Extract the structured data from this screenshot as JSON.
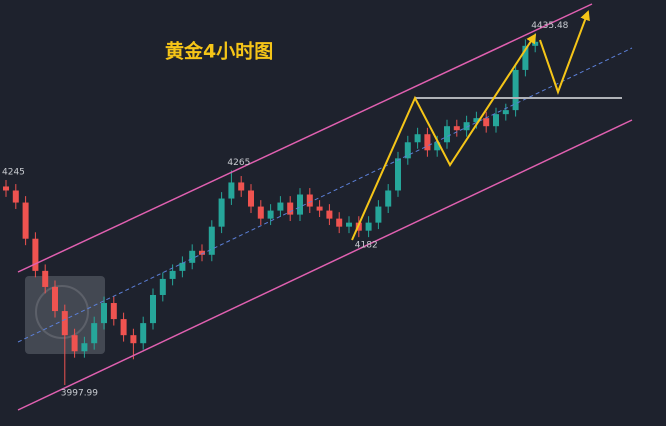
{
  "chart_data": {
    "type": "candlestick",
    "title": "黄金4小时图",
    "ylim": [
      3947,
      4477
    ],
    "up_color": "#26a69a",
    "down_color": "#ef5350",
    "open": [
      4245,
      4240,
      4225,
      4180,
      4140,
      4120,
      4090,
      4060,
      4040,
      4050,
      4075,
      4100,
      4080,
      4060,
      4050,
      4075,
      4110,
      4130,
      4140,
      4150,
      4165,
      4160,
      4195,
      4230,
      4250,
      4240,
      4220,
      4205,
      4215,
      4225,
      4210,
      4235,
      4220,
      4215,
      4205,
      4195,
      4200,
      4190,
      4200,
      4220,
      4240,
      4280,
      4300,
      4310,
      4290,
      4300,
      4320,
      4315,
      4325,
      4330,
      4320,
      4335,
      4340,
      4390,
      4420
    ],
    "high": [
      4253,
      4248,
      4233,
      4188,
      4148,
      4128,
      4098,
      4068,
      4058,
      4083,
      4108,
      4108,
      4088,
      4068,
      4083,
      4118,
      4138,
      4148,
      4158,
      4173,
      4173,
      4203,
      4238,
      4265,
      4258,
      4248,
      4228,
      4223,
      4233,
      4233,
      4243,
      4243,
      4228,
      4223,
      4213,
      4208,
      4208,
      4208,
      4228,
      4248,
      4288,
      4308,
      4318,
      4318,
      4308,
      4328,
      4328,
      4333,
      4338,
      4338,
      4343,
      4348,
      4398,
      4428,
      4435.48
    ],
    "low": [
      4232,
      4217,
      4172,
      4132,
      4112,
      4082,
      3997.99,
      4032,
      4032,
      4042,
      4067,
      4072,
      4052,
      4030,
      4042,
      4067,
      4102,
      4122,
      4132,
      4142,
      4152,
      4152,
      4187,
      4222,
      4232,
      4212,
      4197,
      4197,
      4207,
      4202,
      4202,
      4212,
      4207,
      4197,
      4187,
      4187,
      4182,
      4182,
      4192,
      4212,
      4232,
      4272,
      4292,
      4282,
      4282,
      4292,
      4307,
      4307,
      4317,
      4312,
      4312,
      4327,
      4332,
      4382,
      4412
    ],
    "close": [
      4240,
      4225,
      4180,
      4140,
      4120,
      4090,
      4060,
      4040,
      4050,
      4075,
      4100,
      4080,
      4060,
      4050,
      4075,
      4110,
      4130,
      4140,
      4150,
      4165,
      4160,
      4195,
      4230,
      4250,
      4240,
      4220,
      4205,
      4215,
      4225,
      4210,
      4235,
      4220,
      4215,
      4205,
      4195,
      4200,
      4190,
      4200,
      4220,
      4240,
      4280,
      4300,
      4310,
      4290,
      4300,
      4320,
      4315,
      4325,
      4330,
      4320,
      4335,
      4340,
      4390,
      4420,
      4425
    ],
    "price_labels": [
      4245,
      4265,
      4182,
      4435.48,
      3997.99
    ]
  }
}
